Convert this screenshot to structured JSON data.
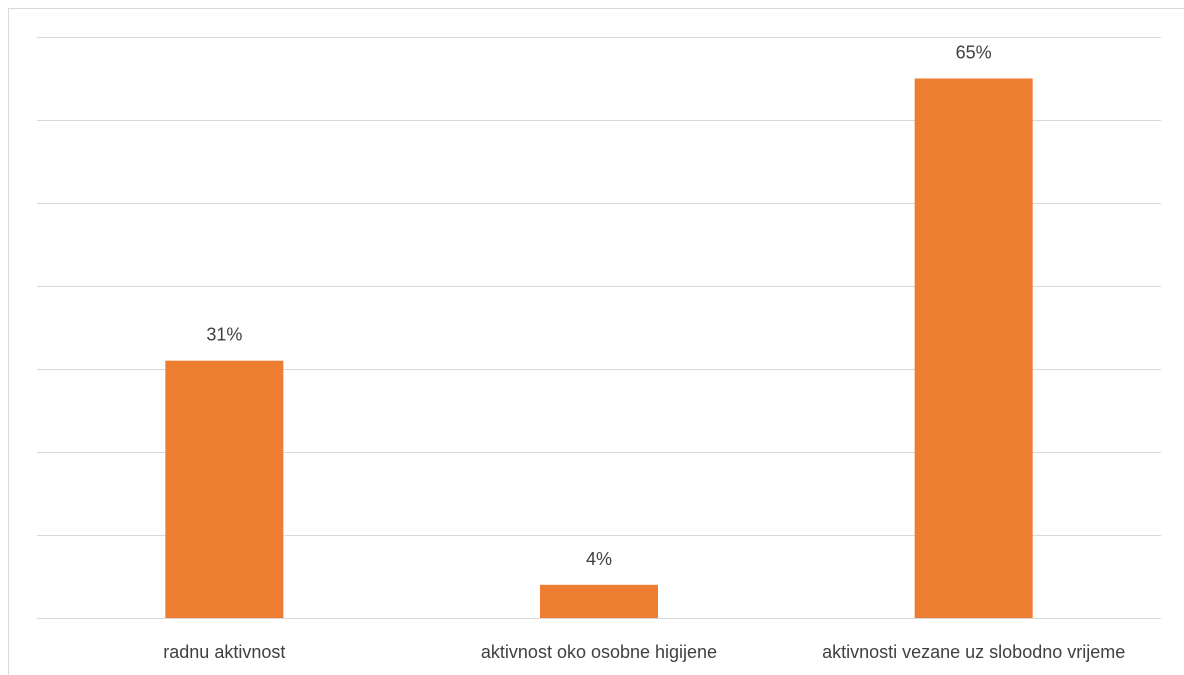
{
  "chart_data": {
    "type": "bar",
    "title": "",
    "xlabel": "",
    "ylabel": "",
    "categories": [
      "radnu aktivnost",
      "aktivnost oko osobne higijene",
      "aktivnosti vezane uz slobodno vrijeme"
    ],
    "values": [
      31,
      4,
      65
    ],
    "data_labels": [
      "31%",
      "4%",
      "65%"
    ],
    "ylim": [
      0,
      70
    ],
    "gridline_step": 10,
    "grid": true,
    "y_axis_labels_visible": false,
    "legend": "none",
    "bar_color": "#ed7d31",
    "gridline_color": "#d9d9d9",
    "label_color": "#404040"
  }
}
